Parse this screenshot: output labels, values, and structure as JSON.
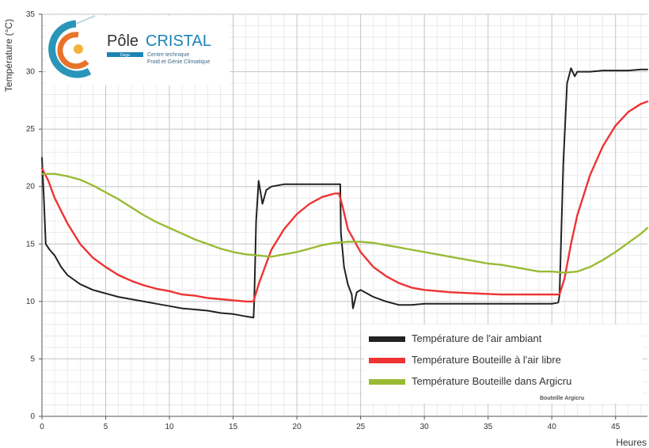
{
  "logo": {
    "name_part1": "Pôle",
    "name_part2": "CRISTAL",
    "tag": "Dega",
    "subtitle_line1": "Centre technique",
    "subtitle_line2": "Froid et Génie Climatique"
  },
  "residual_text": "Bouteille Argicru",
  "chart_data": {
    "type": "line",
    "title": "",
    "xlabel": "Heures",
    "ylabel": "Température (°C)",
    "xlim": [
      0,
      47.5
    ],
    "ylim": [
      0,
      35
    ],
    "xticks": [
      0,
      5,
      10,
      15,
      20,
      25,
      30,
      35,
      40,
      45
    ],
    "yticks": [
      0,
      5,
      10,
      15,
      20,
      25,
      30,
      35
    ],
    "grid": true,
    "legend_position": "bottom-right",
    "series": [
      {
        "name": "Température de l'air ambiant",
        "color": "#222222",
        "x": [
          0,
          0.15,
          0.3,
          0.6,
          1,
          1.5,
          2,
          3,
          4,
          5,
          6,
          7,
          8,
          9,
          10,
          11,
          12,
          13,
          14,
          15,
          16,
          16.6,
          16.65,
          16.8,
          17,
          17.3,
          17.6,
          18,
          19,
          20,
          21,
          22,
          23,
          23.4,
          23.45,
          23.7,
          24,
          24.3,
          24.4,
          24.7,
          25,
          26,
          27,
          28,
          29,
          30,
          31,
          32,
          33,
          34,
          35,
          36,
          37,
          38,
          39,
          40,
          40.5,
          40.6,
          40.9,
          41.2,
          41.5,
          41.8,
          42,
          43,
          44,
          45,
          46,
          47,
          47.5
        ],
        "values": [
          22.5,
          19,
          15,
          14.5,
          14,
          13,
          12.3,
          11.5,
          11,
          10.7,
          10.4,
          10.2,
          10,
          9.8,
          9.6,
          9.4,
          9.3,
          9.2,
          9.0,
          8.9,
          8.7,
          8.6,
          10,
          17,
          20.5,
          18.5,
          19.7,
          20,
          20.2,
          20.2,
          20.2,
          20.2,
          20.2,
          20.2,
          16,
          13,
          11.5,
          10.6,
          9.4,
          10.8,
          11,
          10.4,
          10.0,
          9.7,
          9.7,
          9.8,
          9.8,
          9.8,
          9.8,
          9.8,
          9.8,
          9.8,
          9.8,
          9.8,
          9.8,
          9.8,
          9.9,
          10.5,
          22,
          29,
          30.3,
          29.6,
          30,
          30,
          30.1,
          30.1,
          30.1,
          30.2,
          30.2
        ]
      },
      {
        "name": "Température Bouteille à l'air libre",
        "color": "#ee3333",
        "x": [
          0,
          0.5,
          1,
          2,
          3,
          4,
          5,
          6,
          7,
          8,
          9,
          10,
          11,
          12,
          13,
          14,
          15,
          16,
          16.6,
          17,
          17.5,
          18,
          19,
          20,
          21,
          22,
          23,
          23.3,
          23.6,
          24,
          25,
          26,
          27,
          28,
          29,
          30,
          32,
          34,
          36,
          38,
          40,
          40.6,
          41,
          41.5,
          42,
          43,
          44,
          45,
          46,
          47,
          47.5
        ],
        "values": [
          21.6,
          20.5,
          19,
          16.8,
          15,
          13.8,
          13,
          12.3,
          11.8,
          11.4,
          11.1,
          10.9,
          10.6,
          10.5,
          10.3,
          10.2,
          10.1,
          10,
          10,
          11.5,
          13,
          14.5,
          16.3,
          17.6,
          18.5,
          19.1,
          19.4,
          19.4,
          18.2,
          16.3,
          14.3,
          13.0,
          12.2,
          11.6,
          11.2,
          11.0,
          10.8,
          10.7,
          10.6,
          10.6,
          10.6,
          10.6,
          12,
          15,
          17.5,
          21,
          23.5,
          25.3,
          26.5,
          27.2,
          27.4
        ]
      },
      {
        "name": "Température Bouteille dans Argicru",
        "color": "#99bb33",
        "x": [
          0,
          1,
          2,
          3,
          4,
          5,
          6,
          7,
          8,
          9,
          10,
          11,
          12,
          13,
          14,
          15,
          16,
          17,
          18,
          19,
          20,
          21,
          22,
          23,
          24,
          25,
          26,
          27,
          28,
          29,
          30,
          31,
          32,
          33,
          34,
          35,
          36,
          37,
          38,
          39,
          40,
          41,
          42,
          43,
          44,
          45,
          46,
          47,
          47.5
        ],
        "values": [
          21.1,
          21.1,
          20.9,
          20.6,
          20.1,
          19.5,
          18.9,
          18.2,
          17.5,
          16.9,
          16.4,
          15.9,
          15.4,
          15.0,
          14.6,
          14.3,
          14.1,
          14.0,
          13.9,
          14.1,
          14.3,
          14.6,
          14.9,
          15.1,
          15.2,
          15.2,
          15.1,
          14.9,
          14.7,
          14.5,
          14.3,
          14.1,
          13.9,
          13.7,
          13.5,
          13.3,
          13.2,
          13.0,
          12.8,
          12.6,
          12.6,
          12.5,
          12.6,
          13.0,
          13.6,
          14.3,
          15.1,
          15.9,
          16.4
        ]
      }
    ]
  }
}
